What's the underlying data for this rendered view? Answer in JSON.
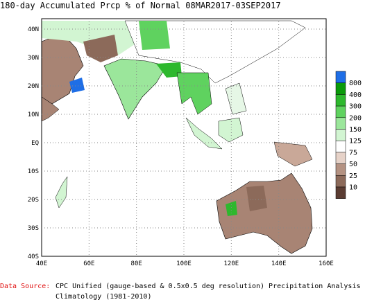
{
  "title": "180-day Accumulated Prcp % of Normal 08MAR2017-03SEP2017",
  "lat_labels": [
    "40N",
    "30N",
    "20N",
    "10N",
    "EQ",
    "10S",
    "20S",
    "30S",
    "40S"
  ],
  "lon_labels": [
    "40E",
    "60E",
    "80E",
    "100E",
    "120E",
    "140E",
    "160E"
  ],
  "legend": {
    "colors": [
      "#1e6ee6",
      "#0a9a0a",
      "#2db82d",
      "#5fd25f",
      "#9be69b",
      "#d2f5d2",
      "#ffffff",
      "#e6d2c8",
      "#b49282",
      "#8c6a5a",
      "#5a3c32"
    ],
    "labels": [
      "800",
      "400",
      "300",
      "200",
      "150",
      "125",
      "75",
      "50",
      "25",
      "10"
    ]
  },
  "footer": {
    "source_label": "Data Source:",
    "source": "CPC Unified (gauge-based & 0.5x0.5 deg resolution) Precipitation Analysis",
    "climatology": "Climatology (1981-2010)"
  }
}
